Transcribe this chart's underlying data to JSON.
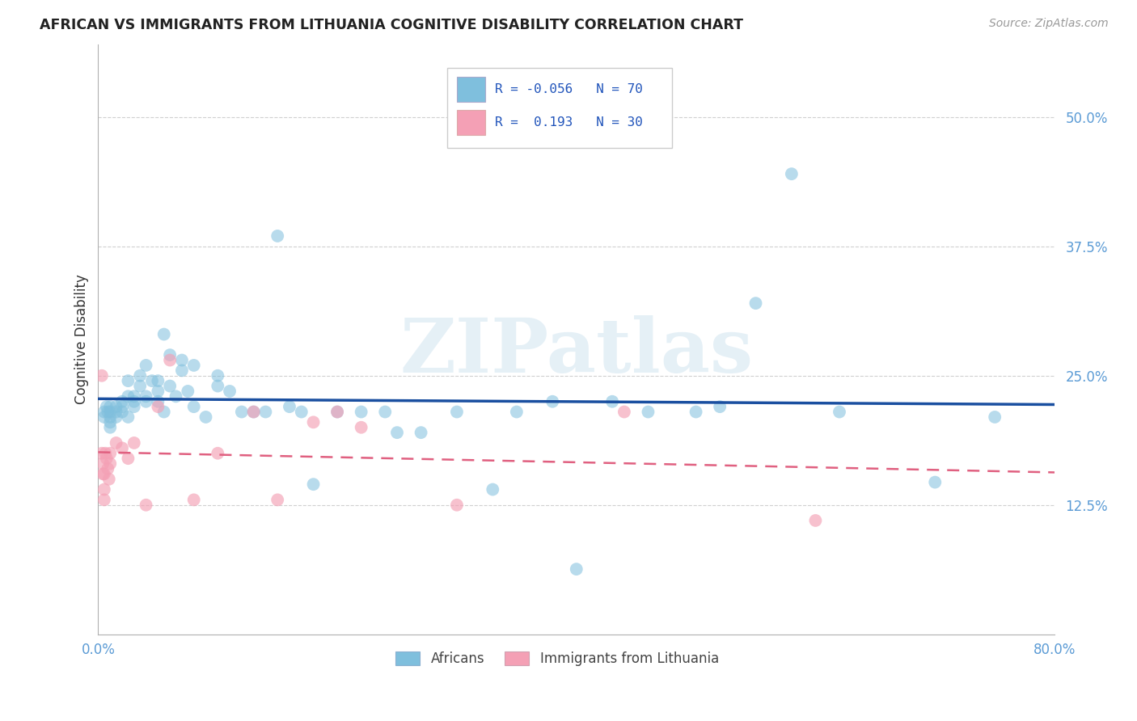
{
  "title": "AFRICAN VS IMMIGRANTS FROM LITHUANIA COGNITIVE DISABILITY CORRELATION CHART",
  "source": "Source: ZipAtlas.com",
  "ylabel": "Cognitive Disability",
  "ytick_labels": [
    "12.5%",
    "25.0%",
    "37.5%",
    "50.0%"
  ],
  "ytick_values": [
    0.125,
    0.25,
    0.375,
    0.5
  ],
  "xlim": [
    0.0,
    0.8
  ],
  "ylim": [
    0.0,
    0.57
  ],
  "watermark_text": "ZIPatlas",
  "legend_african_R": "-0.056",
  "legend_african_N": "70",
  "legend_lithuania_R": "0.193",
  "legend_lithuania_N": "30",
  "african_scatter_color": "#7fbfdd",
  "african_trendline_color": "#1a4fa0",
  "lithuania_scatter_color": "#f4a0b5",
  "lithuania_trendline_color": "#e06080",
  "africans_x": [
    0.005,
    0.005,
    0.007,
    0.008,
    0.01,
    0.01,
    0.01,
    0.01,
    0.01,
    0.015,
    0.015,
    0.015,
    0.02,
    0.02,
    0.02,
    0.025,
    0.025,
    0.025,
    0.03,
    0.03,
    0.03,
    0.035,
    0.035,
    0.04,
    0.04,
    0.04,
    0.045,
    0.05,
    0.05,
    0.05,
    0.055,
    0.055,
    0.06,
    0.06,
    0.065,
    0.07,
    0.07,
    0.075,
    0.08,
    0.08,
    0.09,
    0.1,
    0.1,
    0.11,
    0.12,
    0.13,
    0.14,
    0.15,
    0.16,
    0.17,
    0.18,
    0.2,
    0.22,
    0.24,
    0.25,
    0.27,
    0.3,
    0.33,
    0.35,
    0.38,
    0.4,
    0.43,
    0.46,
    0.5,
    0.52,
    0.55,
    0.58,
    0.62,
    0.7,
    0.75
  ],
  "africans_y": [
    0.21,
    0.215,
    0.22,
    0.215,
    0.22,
    0.215,
    0.21,
    0.205,
    0.2,
    0.22,
    0.215,
    0.21,
    0.225,
    0.22,
    0.215,
    0.23,
    0.245,
    0.21,
    0.23,
    0.225,
    0.22,
    0.24,
    0.25,
    0.23,
    0.225,
    0.26,
    0.245,
    0.235,
    0.245,
    0.225,
    0.29,
    0.215,
    0.24,
    0.27,
    0.23,
    0.255,
    0.265,
    0.235,
    0.26,
    0.22,
    0.21,
    0.25,
    0.24,
    0.235,
    0.215,
    0.215,
    0.215,
    0.385,
    0.22,
    0.215,
    0.145,
    0.215,
    0.215,
    0.215,
    0.195,
    0.195,
    0.215,
    0.14,
    0.215,
    0.225,
    0.063,
    0.225,
    0.215,
    0.215,
    0.22,
    0.32,
    0.445,
    0.215,
    0.147,
    0.21
  ],
  "lithuania_x": [
    0.003,
    0.003,
    0.004,
    0.004,
    0.005,
    0.005,
    0.005,
    0.006,
    0.007,
    0.008,
    0.009,
    0.01,
    0.01,
    0.015,
    0.02,
    0.025,
    0.03,
    0.04,
    0.05,
    0.06,
    0.08,
    0.1,
    0.13,
    0.15,
    0.18,
    0.2,
    0.22,
    0.3,
    0.44,
    0.6
  ],
  "lithuania_y": [
    0.25,
    0.175,
    0.165,
    0.155,
    0.155,
    0.14,
    0.13,
    0.175,
    0.17,
    0.16,
    0.15,
    0.175,
    0.165,
    0.185,
    0.18,
    0.17,
    0.185,
    0.125,
    0.22,
    0.265,
    0.13,
    0.175,
    0.215,
    0.13,
    0.205,
    0.215,
    0.2,
    0.125,
    0.215,
    0.11
  ]
}
